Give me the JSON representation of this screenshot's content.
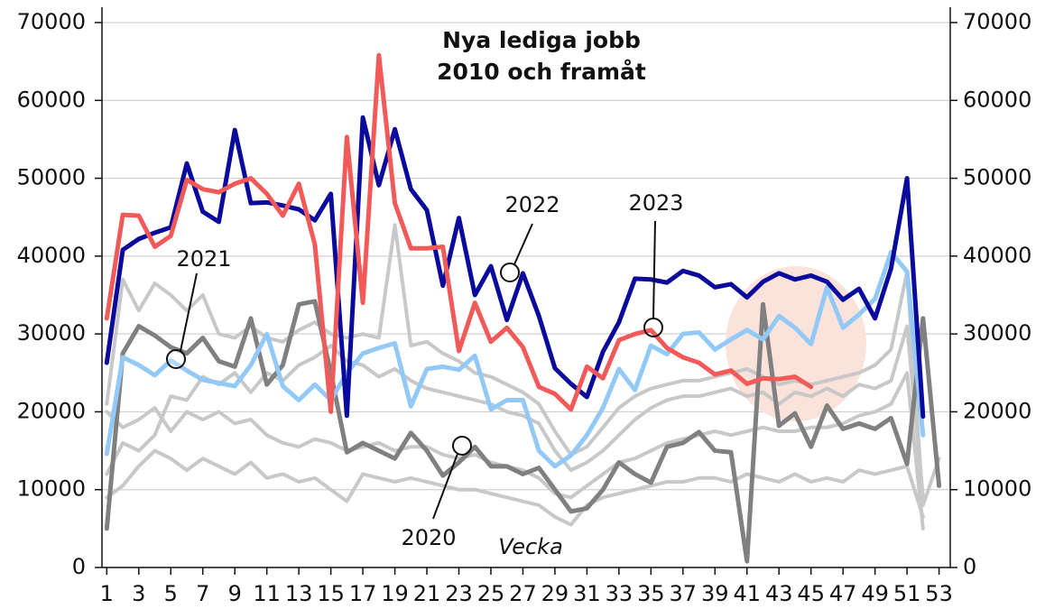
{
  "chart_data": {
    "type": "line",
    "title": [
      "Nya lediga jobb",
      "2010 och framåt"
    ],
    "x_label": "Vecka",
    "annotations": [
      "2021",
      "2022",
      "2023",
      "2020"
    ],
    "x": [
      1,
      2,
      3,
      4,
      5,
      6,
      7,
      8,
      9,
      10,
      11,
      12,
      13,
      14,
      15,
      16,
      17,
      18,
      19,
      20,
      21,
      22,
      23,
      24,
      25,
      26,
      27,
      28,
      29,
      30,
      31,
      32,
      33,
      34,
      35,
      36,
      37,
      38,
      39,
      40,
      41,
      42,
      43,
      44,
      45,
      46,
      47,
      48,
      49,
      50,
      51,
      52,
      53
    ],
    "xlim": [
      0.7,
      53.7
    ],
    "xticks": [
      1,
      3,
      5,
      7,
      9,
      11,
      13,
      15,
      17,
      19,
      21,
      23,
      25,
      27,
      29,
      31,
      33,
      35,
      37,
      39,
      41,
      43,
      45,
      47,
      49,
      51,
      53
    ],
    "ylim": [
      0,
      70000
    ],
    "yticks": [
      0,
      10000,
      20000,
      30000,
      40000,
      50000,
      60000,
      70000
    ],
    "y2lim": [
      0,
      70000
    ],
    "y2ticks": [
      0,
      10000,
      20000,
      30000,
      40000,
      50000,
      60000,
      70000
    ],
    "grid": true,
    "series": [
      {
        "color": "#c8c8c8",
        "values": [
          21000,
          37000,
          33000,
          36500,
          35000,
          33000,
          35000,
          30000,
          29500,
          31000,
          29500,
          29000,
          30500,
          31500,
          30000,
          29500,
          30000,
          29500,
          44000,
          28500,
          29000,
          27500,
          26500,
          25000,
          24500,
          23500,
          22500,
          21000,
          17500,
          14500,
          15500,
          18000,
          20500,
          22000,
          23000,
          23500,
          24000,
          24000,
          24500,
          25000,
          25500,
          24500,
          23500,
          24000,
          23500,
          24000,
          24500,
          25000,
          26000,
          28000,
          38000,
          8000,
          14000
        ]
      },
      {
        "color": "#c8c8c8",
        "values": [
          20000,
          18000,
          19000,
          20500,
          17500,
          20000,
          19000,
          20000,
          18500,
          19000,
          17000,
          16000,
          15500,
          16500,
          16000,
          15000,
          15500,
          16000,
          15000,
          15500,
          15500,
          14500,
          14000,
          14500,
          13500,
          13000,
          12500,
          11500,
          9500,
          9000,
          10500,
          12000,
          13500,
          14000,
          15000,
          16000,
          16500,
          17000,
          17500,
          17000,
          17500,
          18000,
          17500,
          17500,
          18000,
          18000,
          18500,
          19500,
          20000,
          21000,
          25000,
          5000,
          null
        ]
      },
      {
        "color": "#c8c8c8",
        "values": [
          9000,
          10500,
          13000,
          15000,
          14000,
          12500,
          14000,
          13000,
          12000,
          13500,
          11500,
          12000,
          11000,
          11500,
          10000,
          8500,
          12000,
          11500,
          11000,
          11500,
          11000,
          10500,
          10000,
          10000,
          9500,
          9000,
          8500,
          8000,
          6500,
          5500,
          8000,
          9000,
          9500,
          10000,
          10500,
          11000,
          11000,
          11500,
          11500,
          11000,
          12000,
          11500,
          11000,
          12000,
          11000,
          11500,
          11000,
          12500,
          12000,
          12500,
          13000,
          6500,
          null
        ]
      },
      {
        "color": "#c8c8c8",
        "values": [
          12000,
          16000,
          15000,
          17000,
          22000,
          21500,
          24500,
          23500,
          25000,
          22500,
          25000,
          24000,
          26000,
          27000,
          28500,
          26500,
          26000,
          24500,
          25500,
          24000,
          23000,
          22500,
          22000,
          21500,
          21000,
          20000,
          19500,
          18500,
          15000,
          12500,
          13500,
          15000,
          17000,
          19000,
          20500,
          21500,
          22000,
          22000,
          22500,
          23000,
          22000,
          22500,
          21000,
          22500,
          22000,
          23000,
          22000,
          23500,
          23000,
          24000,
          31000,
          9000,
          null
        ]
      },
      {
        "color": "#808080",
        "values": [
          5000,
          27500,
          31000,
          29800,
          28300,
          27500,
          29500,
          26500,
          25800,
          32000,
          23500,
          26000,
          33800,
          34200,
          25000,
          14800,
          16000,
          15000,
          14000,
          17300,
          15000,
          11800,
          13500,
          15500,
          13000,
          13000,
          12000,
          12800,
          10000,
          7200,
          7600,
          10000,
          13500,
          12000,
          10900,
          15500,
          16000,
          17400,
          15000,
          14800,
          800,
          33800,
          18200,
          19800,
          15500,
          20800,
          17800,
          18500,
          17800,
          19200,
          13300,
          32000,
          10500
        ]
      },
      {
        "color": "#92c9f7",
        "values": [
          14600,
          27000,
          26000,
          24700,
          26600,
          25300,
          24100,
          23700,
          23300,
          26000,
          30000,
          23300,
          21500,
          23500,
          21500,
          25000,
          27500,
          28200,
          28800,
          20700,
          25500,
          25800,
          25400,
          27200,
          20300,
          21500,
          21500,
          15000,
          13000,
          14400,
          17000,
          20500,
          25500,
          22800,
          28500,
          27400,
          30000,
          30200,
          28000,
          29300,
          30500,
          29300,
          32300,
          30800,
          28700,
          36000,
          30800,
          32500,
          34500,
          40500,
          38000,
          17000,
          null
        ]
      },
      {
        "color": "#0a0a9c",
        "values": [
          26300,
          40800,
          42200,
          43000,
          43700,
          51900,
          45700,
          44400,
          56200,
          46800,
          46900,
          46500,
          46000,
          44600,
          48000,
          19500,
          57800,
          49100,
          56300,
          48600,
          45900,
          36200,
          44900,
          35000,
          38700,
          31800,
          37800,
          32300,
          25600,
          23600,
          21900,
          27700,
          31500,
          37100,
          37000,
          36600,
          38100,
          37500,
          36000,
          36400,
          34700,
          36700,
          37800,
          37000,
          37500,
          36700,
          34400,
          35800,
          32000,
          38400,
          50000,
          19400,
          null
        ]
      },
      {
        "color": "#f25a5a",
        "values": [
          32000,
          45300,
          45200,
          41200,
          42600,
          49800,
          48600,
          48200,
          49300,
          50000,
          48000,
          45200,
          49300,
          41500,
          20000,
          55300,
          34000,
          65800,
          46800,
          41000,
          41000,
          41200,
          27800,
          34000,
          29000,
          30800,
          28300,
          23200,
          22300,
          20300,
          25800,
          24300,
          29200,
          30000,
          30500,
          28200,
          27000,
          26300,
          24800,
          25300,
          23600,
          24300,
          24200,
          24500,
          23200,
          null,
          null,
          null,
          null,
          null,
          null,
          null,
          null
        ]
      }
    ]
  }
}
